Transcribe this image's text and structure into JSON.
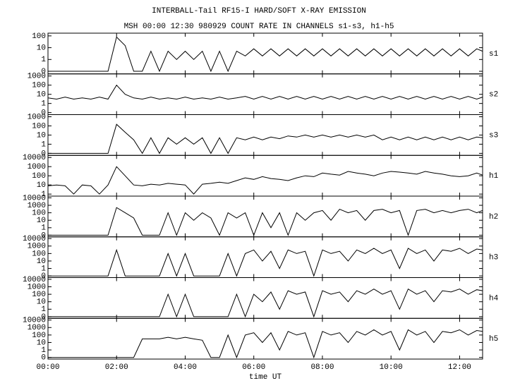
{
  "header": {
    "title": "INTERBALL-Tail RF15-I HARD/SOFT X-RAY EMISSION",
    "subtitle": "MSH 00:00 12:30 980929  COUNT RATE IN CHANNELS s1-s3, h1-h5"
  },
  "chart_data": [
    {
      "type": "line",
      "log_y": true,
      "xlim": [
        0,
        12.67
      ],
      "ylim": [
        0.06,
        170
      ],
      "yticks": [
        {
          "value": 0.1,
          "label": "0"
        },
        1,
        10,
        100
      ],
      "x": [
        0,
        0.25,
        0.5,
        0.75,
        1,
        1.25,
        1.5,
        1.75,
        2,
        2.25,
        2.5,
        2.75,
        3,
        3.25,
        3.5,
        3.75,
        4,
        4.25,
        4.5,
        4.75,
        5,
        5.25,
        5.5,
        5.75,
        6,
        6.25,
        6.5,
        6.75,
        7,
        7.25,
        7.5,
        7.75,
        8,
        8.25,
        8.5,
        8.75,
        9,
        9.25,
        9.5,
        9.75,
        10,
        10.25,
        10.5,
        10.75,
        11,
        11.25,
        11.5,
        11.75,
        12,
        12.25,
        12.5,
        12.67
      ],
      "series": [
        {
          "name": "s1",
          "color": "#000000",
          "values": [
            0.1,
            0.1,
            0.1,
            0.1,
            0.1,
            0.1,
            0.1,
            0.1,
            80,
            15,
            0.1,
            0.1,
            5,
            0.1,
            5,
            1,
            5,
            1,
            5,
            0.1,
            5,
            0.1,
            5,
            2,
            8,
            2,
            8,
            2,
            8,
            2,
            8,
            2,
            8,
            2,
            8,
            2,
            8,
            2,
            8,
            2,
            8,
            2,
            8,
            2,
            8,
            2,
            8,
            2,
            8,
            2,
            8,
            5
          ]
        }
      ]
    },
    {
      "type": "line",
      "log_y": true,
      "xlim": [
        0,
        12.67
      ],
      "ylim": [
        0.06,
        1700
      ],
      "yticks": [
        {
          "value": 0.1,
          "label": "0"
        },
        1,
        10,
        100,
        1000
      ],
      "x": [
        0,
        0.25,
        0.5,
        0.75,
        1,
        1.25,
        1.5,
        1.75,
        2,
        2.25,
        2.5,
        2.75,
        3,
        3.25,
        3.5,
        3.75,
        4,
        4.25,
        4.5,
        4.75,
        5,
        5.25,
        5.5,
        5.75,
        6,
        6.25,
        6.5,
        6.75,
        7,
        7.25,
        7.5,
        7.75,
        8,
        8.25,
        8.5,
        8.75,
        9,
        9.25,
        9.5,
        9.75,
        10,
        10.25,
        10.5,
        10.75,
        11,
        11.25,
        11.5,
        11.75,
        12,
        12.25,
        12.5,
        12.67
      ],
      "series": [
        {
          "name": "s2",
          "color": "#000000",
          "values": [
            4,
            3,
            5,
            3,
            4,
            3,
            5,
            3,
            100,
            10,
            4,
            3,
            5,
            3,
            4,
            3,
            5,
            3,
            4,
            3,
            5,
            3,
            4,
            6,
            3,
            6,
            3,
            6,
            3,
            6,
            3,
            6,
            3,
            6,
            3,
            6,
            3,
            6,
            3,
            6,
            3,
            6,
            3,
            6,
            3,
            6,
            3,
            6,
            3,
            6,
            3,
            5
          ]
        }
      ]
    },
    {
      "type": "line",
      "log_y": true,
      "xlim": [
        0,
        12.67
      ],
      "ylim": [
        0.06,
        1700
      ],
      "yticks": [
        {
          "value": 0.1,
          "label": "0"
        },
        1,
        10,
        100,
        1000
      ],
      "x": [
        0,
        0.25,
        0.5,
        0.75,
        1,
        1.25,
        1.5,
        1.75,
        2,
        2.25,
        2.5,
        2.75,
        3,
        3.25,
        3.5,
        3.75,
        4,
        4.25,
        4.5,
        4.75,
        5,
        5.25,
        5.5,
        5.75,
        6,
        6.25,
        6.5,
        6.75,
        7,
        7.25,
        7.5,
        7.75,
        8,
        8.25,
        8.5,
        8.75,
        9,
        9.25,
        9.5,
        9.75,
        10,
        10.25,
        10.5,
        10.75,
        11,
        11.25,
        11.5,
        11.75,
        12,
        12.25,
        12.5,
        12.67
      ],
      "series": [
        {
          "name": "s3",
          "color": "#000000",
          "values": [
            0.1,
            0.1,
            0.1,
            0.1,
            0.1,
            0.1,
            0.1,
            0.1,
            150,
            20,
            3,
            0.1,
            5,
            0.1,
            5,
            1,
            5,
            1,
            5,
            0.1,
            5,
            0.1,
            5,
            3,
            6,
            3,
            6,
            4,
            8,
            6,
            10,
            6,
            10,
            6,
            10,
            6,
            10,
            6,
            10,
            3,
            6,
            3,
            6,
            3,
            6,
            3,
            6,
            3,
            6,
            3,
            6,
            5
          ]
        }
      ]
    },
    {
      "type": "line",
      "log_y": true,
      "xlim": [
        0,
        12.67
      ],
      "ylim": [
        0.6,
        17000
      ],
      "yticks": [
        1,
        10,
        100,
        1000,
        10000
      ],
      "x": [
        0,
        0.25,
        0.5,
        0.75,
        1,
        1.25,
        1.5,
        1.75,
        2,
        2.25,
        2.5,
        2.75,
        3,
        3.25,
        3.5,
        3.75,
        4,
        4.25,
        4.5,
        4.75,
        5,
        5.25,
        5.5,
        5.75,
        6,
        6.25,
        6.5,
        6.75,
        7,
        7.25,
        7.5,
        7.75,
        8,
        8.25,
        8.5,
        8.75,
        9,
        9.25,
        9.5,
        9.75,
        10,
        10.25,
        10.5,
        10.75,
        11,
        11.25,
        11.5,
        11.75,
        12,
        12.25,
        12.5,
        12.67
      ],
      "series": [
        {
          "name": "h1",
          "color": "#000000",
          "values": [
            8,
            10,
            8,
            1,
            10,
            8,
            1,
            10,
            1000,
            100,
            10,
            8,
            12,
            10,
            15,
            12,
            10,
            1,
            12,
            15,
            20,
            15,
            30,
            60,
            40,
            80,
            50,
            40,
            30,
            60,
            100,
            80,
            200,
            150,
            120,
            300,
            200,
            150,
            100,
            200,
            300,
            250,
            200,
            150,
            300,
            200,
            150,
            100,
            80,
            100,
            200,
            120
          ]
        }
      ]
    },
    {
      "type": "line",
      "log_y": true,
      "xlim": [
        0,
        12.67
      ],
      "ylim": [
        0.06,
        17000
      ],
      "yticks": [
        {
          "value": 0.1,
          "label": "0"
        },
        1,
        10,
        100,
        1000,
        10000
      ],
      "x": [
        0,
        0.25,
        0.5,
        0.75,
        1,
        1.25,
        1.5,
        1.75,
        2,
        2.25,
        2.5,
        2.75,
        3,
        3.25,
        3.5,
        3.75,
        4,
        4.25,
        4.5,
        4.75,
        5,
        5.25,
        5.5,
        5.75,
        6,
        6.25,
        6.5,
        6.75,
        7,
        7.25,
        7.5,
        7.75,
        8,
        8.25,
        8.5,
        8.75,
        9,
        9.25,
        9.5,
        9.75,
        10,
        10.25,
        10.5,
        10.75,
        11,
        11.25,
        11.5,
        11.75,
        12,
        12.25,
        12.5,
        12.67
      ],
      "series": [
        {
          "name": "h2",
          "color": "#000000",
          "values": [
            0.1,
            0.1,
            0.1,
            0.1,
            0.1,
            0.1,
            0.1,
            0.1,
            500,
            100,
            20,
            0.1,
            0.1,
            0.1,
            100,
            0.1,
            100,
            10,
            100,
            20,
            0.1,
            100,
            20,
            100,
            0.1,
            100,
            1,
            100,
            0.1,
            100,
            10,
            100,
            200,
            10,
            300,
            100,
            200,
            10,
            200,
            300,
            100,
            200,
            0.1,
            200,
            300,
            100,
            200,
            100,
            200,
            300,
            100,
            200
          ]
        }
      ]
    },
    {
      "type": "line",
      "log_y": true,
      "xlim": [
        0,
        12.67
      ],
      "ylim": [
        0.06,
        17000
      ],
      "yticks": [
        {
          "value": 0.1,
          "label": "0"
        },
        1,
        10,
        100,
        1000,
        10000
      ],
      "x": [
        0,
        0.25,
        0.5,
        0.75,
        1,
        1.25,
        1.5,
        1.75,
        2,
        2.25,
        2.5,
        2.75,
        3,
        3.25,
        3.5,
        3.75,
        4,
        4.25,
        4.5,
        4.75,
        5,
        5.25,
        5.5,
        5.75,
        6,
        6.25,
        6.5,
        6.75,
        7,
        7.25,
        7.5,
        7.75,
        8,
        8.25,
        8.5,
        8.75,
        9,
        9.25,
        9.5,
        9.75,
        10,
        10.25,
        10.5,
        10.75,
        11,
        11.25,
        11.5,
        11.75,
        12,
        12.25,
        12.5,
        12.67
      ],
      "series": [
        {
          "name": "h3",
          "color": "#000000",
          "values": [
            0.1,
            0.1,
            0.1,
            0.1,
            0.1,
            0.1,
            0.1,
            0.1,
            300,
            0.1,
            0.1,
            0.1,
            0.1,
            0.1,
            100,
            0.1,
            100,
            0.1,
            0.1,
            0.1,
            0.1,
            100,
            0.1,
            100,
            300,
            10,
            200,
            1,
            300,
            100,
            200,
            0.1,
            300,
            100,
            200,
            10,
            300,
            100,
            500,
            100,
            300,
            1,
            500,
            100,
            300,
            10,
            300,
            200,
            500,
            100,
            400,
            300
          ]
        }
      ]
    },
    {
      "type": "line",
      "log_y": true,
      "xlim": [
        0,
        12.67
      ],
      "ylim": [
        0.06,
        17000
      ],
      "yticks": [
        {
          "value": 0.1,
          "label": "0"
        },
        1,
        10,
        100,
        1000,
        10000
      ],
      "x": [
        0,
        0.25,
        0.5,
        0.75,
        1,
        1.25,
        1.5,
        1.75,
        2,
        2.25,
        2.5,
        2.75,
        3,
        3.25,
        3.5,
        3.75,
        4,
        4.25,
        4.5,
        4.75,
        5,
        5.25,
        5.5,
        5.75,
        6,
        6.25,
        6.5,
        6.75,
        7,
        7.25,
        7.5,
        7.75,
        8,
        8.25,
        8.5,
        8.75,
        9,
        9.25,
        9.5,
        9.75,
        10,
        10.25,
        10.5,
        10.75,
        11,
        11.25,
        11.5,
        11.75,
        12,
        12.25,
        12.5,
        12.67
      ],
      "series": [
        {
          "name": "h4",
          "color": "#000000",
          "values": [
            0.1,
            0.1,
            0.1,
            0.1,
            0.1,
            0.1,
            0.1,
            0.1,
            0.1,
            0.1,
            0.1,
            0.1,
            0.1,
            0.1,
            100,
            0.1,
            100,
            0.1,
            0.1,
            0.1,
            0.1,
            0.1,
            100,
            0.1,
            100,
            10,
            200,
            1,
            300,
            100,
            200,
            0.1,
            300,
            100,
            200,
            10,
            300,
            100,
            500,
            100,
            300,
            1,
            500,
            100,
            300,
            10,
            300,
            200,
            500,
            100,
            400,
            300
          ]
        }
      ]
    },
    {
      "type": "line",
      "log_y": true,
      "xlim": [
        0,
        12.67
      ],
      "ylim": [
        0.06,
        17000
      ],
      "yticks": [
        {
          "value": 0.1,
          "label": "0"
        },
        1,
        10,
        100,
        1000,
        10000
      ],
      "xticks": [
        {
          "value": 0,
          "label": "00:00"
        },
        {
          "value": 2,
          "label": "02:00"
        },
        {
          "value": 4,
          "label": "04:00"
        },
        {
          "value": 6,
          "label": "06:00"
        },
        {
          "value": 8,
          "label": "08:00"
        },
        {
          "value": 10,
          "label": "10:00"
        },
        {
          "value": 12,
          "label": "12:00"
        }
      ],
      "xlabel": "time UT",
      "x": [
        0,
        0.25,
        0.5,
        0.75,
        1,
        1.25,
        1.5,
        1.75,
        2,
        2.25,
        2.5,
        2.75,
        3,
        3.25,
        3.5,
        3.75,
        4,
        4.25,
        4.5,
        4.75,
        5,
        5.25,
        5.5,
        5.75,
        6,
        6.25,
        6.5,
        6.75,
        7,
        7.25,
        7.5,
        7.75,
        8,
        8.25,
        8.5,
        8.75,
        9,
        9.25,
        9.5,
        9.75,
        10,
        10.25,
        10.5,
        10.75,
        11,
        11.25,
        11.5,
        11.75,
        12,
        12.25,
        12.5,
        12.67
      ],
      "series": [
        {
          "name": "h5",
          "color": "#000000",
          "values": [
            0.1,
            0.1,
            0.1,
            0.1,
            0.1,
            0.1,
            0.1,
            0.1,
            0.1,
            0.1,
            0.1,
            30,
            30,
            30,
            50,
            30,
            50,
            30,
            20,
            0.1,
            0.1,
            100,
            0.1,
            100,
            200,
            10,
            200,
            1,
            300,
            100,
            200,
            0.1,
            300,
            100,
            200,
            10,
            300,
            100,
            500,
            100,
            300,
            1,
            500,
            100,
            300,
            10,
            300,
            200,
            500,
            100,
            400,
            300
          ]
        }
      ]
    }
  ]
}
